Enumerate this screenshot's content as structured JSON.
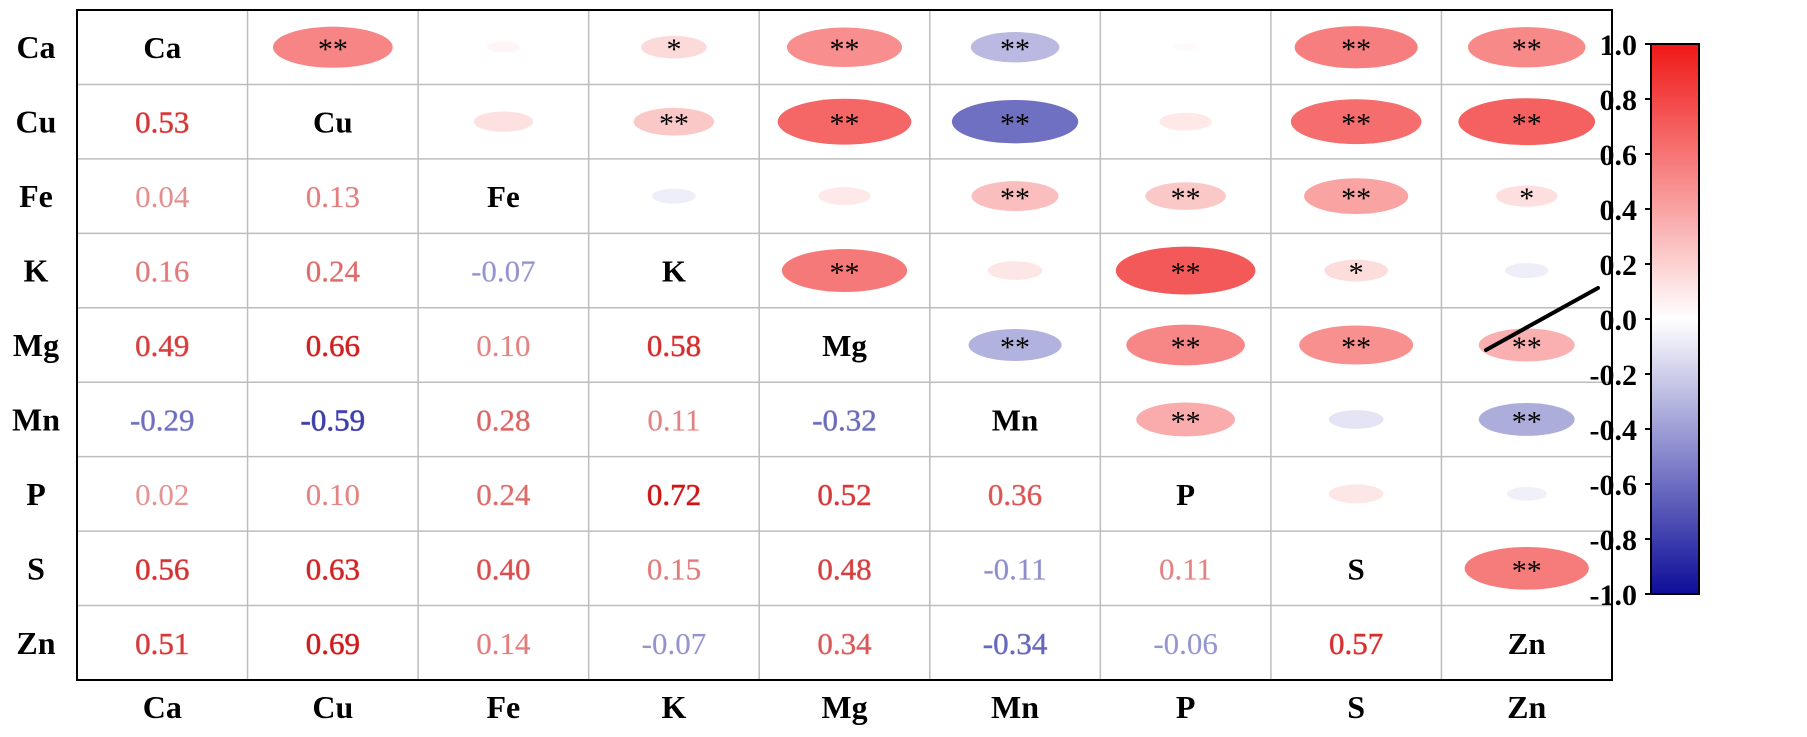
{
  "chart_data": {
    "type": "heatmap",
    "variables": [
      "Ca",
      "Cu",
      "Fe",
      "K",
      "Mg",
      "Mn",
      "P",
      "S",
      "Zn"
    ],
    "correlations": [
      [
        1.0,
        0.53,
        0.04,
        0.16,
        0.49,
        -0.29,
        0.02,
        0.56,
        0.51
      ],
      [
        0.53,
        1.0,
        0.13,
        0.24,
        0.66,
        -0.59,
        0.1,
        0.63,
        0.69
      ],
      [
        0.04,
        0.13,
        1.0,
        -0.07,
        0.1,
        0.28,
        0.24,
        0.4,
        0.14
      ],
      [
        0.16,
        0.24,
        -0.07,
        1.0,
        0.58,
        0.11,
        0.72,
        0.15,
        -0.07
      ],
      [
        0.49,
        0.66,
        0.1,
        0.58,
        1.0,
        -0.32,
        0.52,
        0.48,
        0.34
      ],
      [
        -0.29,
        -0.59,
        0.28,
        0.11,
        -0.32,
        1.0,
        0.36,
        -0.11,
        -0.34
      ],
      [
        0.02,
        0.1,
        0.24,
        0.72,
        0.52,
        0.36,
        1.0,
        0.11,
        -0.06
      ],
      [
        0.56,
        0.63,
        0.4,
        0.15,
        0.48,
        -0.11,
        0.11,
        1.0,
        0.57
      ],
      [
        0.51,
        0.69,
        0.14,
        -0.07,
        0.34,
        -0.34,
        -0.06,
        0.57,
        1.0
      ]
    ],
    "upper_triangle": "ellipses",
    "lower_triangle": "numbers",
    "diagonal": "variable-names",
    "significance": [
      [
        "",
        "**",
        "",
        "*",
        "**",
        "**",
        "",
        "**",
        "**"
      ],
      [
        "",
        "",
        "",
        "**",
        "**",
        "**",
        "",
        "**",
        "**"
      ],
      [
        "",
        "",
        "",
        "",
        "",
        "**",
        "**",
        "**",
        "*"
      ],
      [
        "",
        "",
        "",
        "",
        "**",
        "",
        "**",
        "*",
        ""
      ],
      [
        "",
        "",
        "",
        "",
        "",
        "**",
        "**",
        "**",
        "**"
      ],
      [
        "",
        "",
        "",
        "",
        "",
        "",
        "**",
        "",
        "**"
      ],
      [
        "",
        "",
        "",
        "",
        "",
        "",
        "",
        "",
        ""
      ],
      [
        "",
        "",
        "",
        "",
        "",
        "",
        "",
        "",
        "**"
      ],
      [
        "",
        "",
        "",
        "",
        "",
        "",
        "",
        "",
        ""
      ]
    ],
    "colorbar": {
      "range": [
        -1.0,
        1.0
      ],
      "ticks": [
        "1.0",
        "0.8",
        "0.6",
        "0.4",
        "0.2",
        "0.0",
        "-0.2",
        "-0.4",
        "-0.6",
        "-0.8",
        "-1.0"
      ],
      "colors": {
        "negative": "#0d0d99",
        "zero": "#ffffff",
        "positive": "#f01818"
      },
      "placement": "right"
    },
    "grid": true,
    "title": "",
    "xlabel": "",
    "ylabel": ""
  }
}
